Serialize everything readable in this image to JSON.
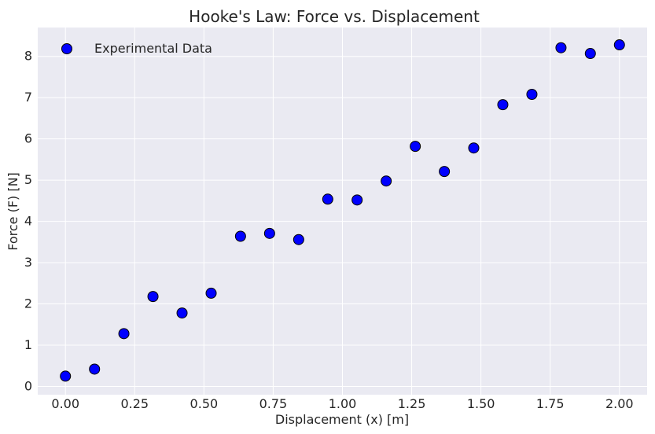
{
  "chart_data": {
    "type": "scatter",
    "title": "Hooke's Law: Force vs. Displacement",
    "xlabel": "Displacement (x) [m]",
    "ylabel": "Force (F) [N]",
    "xlim": [
      -0.1,
      2.1
    ],
    "ylim": [
      -0.2,
      8.7
    ],
    "xticks": [
      0.0,
      0.25,
      0.5,
      0.75,
      1.0,
      1.25,
      1.5,
      1.75,
      2.0
    ],
    "xtick_labels": [
      "0.00",
      "0.25",
      "0.50",
      "0.75",
      "1.00",
      "1.25",
      "1.50",
      "1.75",
      "2.00"
    ],
    "yticks": [
      0,
      1,
      2,
      3,
      4,
      5,
      6,
      7,
      8
    ],
    "ytick_labels": [
      "0",
      "1",
      "2",
      "3",
      "4",
      "5",
      "6",
      "7",
      "8"
    ],
    "grid": true,
    "legend": {
      "position": "top-left",
      "entries": [
        "Experimental Data"
      ]
    },
    "colors": {
      "background": "#EAEAF2",
      "grid": "#FFFFFF",
      "marker_fill": "#0000FF",
      "marker_edge": "#000000"
    },
    "series": [
      {
        "name": "Experimental Data",
        "x": [
          0.0,
          0.105,
          0.211,
          0.316,
          0.421,
          0.526,
          0.632,
          0.737,
          0.842,
          0.947,
          1.053,
          1.158,
          1.263,
          1.368,
          1.474,
          1.579,
          1.684,
          1.789,
          1.895,
          2.0
        ],
        "y": [
          0.25,
          0.42,
          1.28,
          2.18,
          1.78,
          2.26,
          3.64,
          3.71,
          3.56,
          4.54,
          4.52,
          4.98,
          5.82,
          5.21,
          5.78,
          6.83,
          7.08,
          8.21,
          8.07,
          8.28
        ]
      }
    ]
  }
}
